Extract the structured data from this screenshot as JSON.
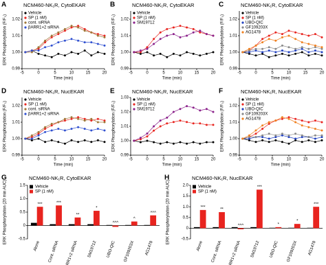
{
  "chart_data": [
    {
      "type": "line",
      "panel": "A",
      "title": "NCM460-NK₁R, CytoEKAR",
      "xlabel": "Time (min)",
      "ylabel": "ERK Phosphorylation (F/F₀)",
      "x": [
        -4,
        -2,
        0,
        2,
        4,
        6,
        8,
        10,
        12,
        14,
        16,
        18,
        20
      ],
      "xlim": [
        -5,
        20
      ],
      "xticks": [
        -5,
        0,
        5,
        10,
        15,
        20
      ],
      "ylim": [
        0.99,
        1.025
      ],
      "yticks": [
        0.99,
        {
          "value": 1,
          "label": "1.00"
        },
        1.01,
        1.02
      ],
      "series": [
        {
          "name": "Vehicle",
          "color": "#000000",
          "values": [
            1.0,
            1.001,
            0.999,
            0.998,
            0.997,
            0.999,
            0.998,
            1.0,
            0.999,
            1.001,
            0.998,
            1.0,
            0.999
          ]
        },
        {
          "name": "SP (1 nM)",
          "color": "#e8241f",
          "values": [
            1.0,
            1.001,
            1.002,
            1.006,
            1.009,
            1.011,
            1.013,
            1.015,
            1.016,
            1.014,
            1.012,
            1.011,
            1.01
          ]
        },
        {
          "name": "cont. siRNA",
          "color": "#a07838",
          "values": [
            1.0,
            1.0,
            1.003,
            1.007,
            1.01,
            1.012,
            1.014,
            1.016,
            1.015,
            1.013,
            1.012,
            1.01,
            1.009
          ]
        },
        {
          "name": "βARR1+2 siRNA",
          "color": "#3050d0",
          "values": [
            1.0,
            1.001,
            1.001,
            1.003,
            1.004,
            1.006,
            1.007,
            1.008,
            1.007,
            1.006,
            1.006,
            1.005,
            1.004
          ]
        }
      ]
    },
    {
      "type": "line",
      "panel": "B",
      "title": "NCM460-NK₁R, CytoEKAR",
      "xlabel": "Time (min)",
      "ylabel": "ERK Phosphorylation (F/F₀)",
      "x": [
        -4,
        -2,
        0,
        2,
        4,
        6,
        8,
        10,
        12,
        14,
        16,
        18,
        20
      ],
      "xlim": [
        -5,
        20
      ],
      "xticks": [
        -5,
        0,
        5,
        10,
        15,
        20
      ],
      "ylim": [
        0.99,
        1.025
      ],
      "yticks": [
        0.99,
        {
          "value": 1,
          "label": "1.00"
        },
        1.01,
        1.02
      ],
      "series": [
        {
          "name": "Vehicle",
          "color": "#000000",
          "values": [
            1.0,
            0.999,
            1.0,
            0.998,
            0.999,
            0.997,
            0.999,
            0.998,
            1.0,
            0.999,
            0.998,
            0.999,
            1.0
          ]
        },
        {
          "name": "SP (1 nM)",
          "color": "#e8241f",
          "values": [
            1.0,
            1.0,
            1.003,
            1.008,
            1.012,
            1.014,
            1.015,
            1.016,
            1.015,
            1.014,
            1.012,
            1.011,
            1.01
          ]
        },
        {
          "name": "SM19712",
          "color": "#8a1f8a",
          "values": [
            1.0,
            1.001,
            1.002,
            1.005,
            1.008,
            1.01,
            1.011,
            1.009,
            1.01,
            1.012,
            1.013,
            1.011,
            1.01
          ]
        }
      ]
    },
    {
      "type": "line",
      "panel": "C",
      "title": "NCM460-NK₁R, CytoEKAR",
      "xlabel": "Time (min)",
      "ylabel": "ERK Phosphorylation (F/F₀)",
      "x": [
        -4,
        -2,
        0,
        2,
        4,
        6,
        8,
        10,
        12,
        14,
        16,
        18,
        20
      ],
      "xlim": [
        -5,
        20
      ],
      "xticks": [
        -5,
        0,
        5,
        10,
        15,
        20
      ],
      "ylim": [
        0.99,
        1.025
      ],
      "yticks": [
        0.99,
        {
          "value": 1,
          "label": "1.00"
        },
        1.01,
        1.02
      ],
      "series": [
        {
          "name": "Vehicle",
          "color": "#000000",
          "values": [
            1.0,
            0.999,
            0.998,
            0.999,
            0.997,
            0.998,
            0.999,
            0.998,
            0.999,
            1.0,
            0.998,
            0.999,
            0.998
          ]
        },
        {
          "name": "SP (1 nM)",
          "color": "#e8241f",
          "values": [
            1.0,
            1.001,
            1.004,
            1.008,
            1.01,
            1.012,
            1.011,
            1.013,
            1.012,
            1.011,
            1.01,
            1.011,
            1.009
          ]
        },
        {
          "name": "UBO-QIC",
          "color": "#2040c0",
          "values": [
            1.0,
            1.0,
            1.001,
            1.0,
            1.001,
            1.0,
            1.001,
            1.0,
            1.001,
            1.002,
            1.0,
            1.001,
            1.0
          ]
        },
        {
          "name": "GF109203X",
          "color": "#888888",
          "values": [
            1.0,
            1.001,
            1.002,
            1.002,
            1.003,
            1.002,
            1.004,
            1.003,
            1.002,
            1.003,
            1.002,
            1.003,
            1.002
          ]
        },
        {
          "name": "AG1478",
          "color": "#f08020",
          "values": [
            1.0,
            1.002,
            1.004,
            1.006,
            1.008,
            1.007,
            1.009,
            1.01,
            1.008,
            1.006,
            1.005,
            1.004,
            1.003
          ]
        }
      ]
    },
    {
      "type": "line",
      "panel": "D",
      "title": "NCM460-NK₁R, NucEKAR",
      "xlabel": "Time (min)",
      "ylabel": "ERK Phosphorylation (F/F₀)",
      "x": [
        -4,
        -2,
        0,
        2,
        4,
        6,
        8,
        10,
        12,
        14,
        16,
        18,
        20
      ],
      "xlim": [
        -5,
        20
      ],
      "xticks": [
        -5,
        0,
        5,
        10,
        15,
        20
      ],
      "ylim": [
        0.99,
        1.025
      ],
      "yticks": [
        0.99,
        {
          "value": 1,
          "label": "1.00"
        },
        1.01,
        1.02
      ],
      "series": [
        {
          "name": "Vehicle",
          "color": "#000000",
          "values": [
            1.0,
            0.999,
            1.0,
            0.998,
            0.999,
            0.998,
            0.997,
            0.999,
            0.998,
            0.999,
            0.998,
            0.999,
            0.998
          ]
        },
        {
          "name": "SP (1 nM)",
          "color": "#e8241f",
          "values": [
            1.0,
            1.001,
            1.003,
            1.006,
            1.008,
            1.01,
            1.011,
            1.012,
            1.013,
            1.012,
            1.011,
            1.012,
            1.011
          ]
        },
        {
          "name": "cont. siRNA",
          "color": "#a07838",
          "values": [
            1.0,
            1.002,
            1.004,
            1.007,
            1.009,
            1.01,
            1.012,
            1.013,
            1.012,
            1.011,
            1.012,
            1.01,
            1.01
          ]
        },
        {
          "name": "βARR1+2 siRNA",
          "color": "#3050d0",
          "values": [
            1.0,
            1.0,
            1.002,
            1.004,
            1.005,
            1.006,
            1.005,
            1.006,
            1.007,
            1.006,
            1.005,
            1.006,
            1.005
          ]
        }
      ]
    },
    {
      "type": "line",
      "panel": "E",
      "title": "NCM460-NK₁R, NucEKAR",
      "xlabel": "Time (min)",
      "ylabel": "ERK Phosphorylation (F/F₀)",
      "x": [
        -4,
        -2,
        0,
        2,
        4,
        6,
        8,
        10,
        12,
        14,
        16,
        18,
        20
      ],
      "xlim": [
        -5,
        20
      ],
      "xticks": [
        -5,
        0,
        5,
        10,
        15,
        20
      ],
      "ylim": [
        0.99,
        1.03
      ],
      "yticks": [
        0.99,
        {
          "value": 1,
          "label": "1.00"
        },
        1.01,
        1.02,
        1.03
      ],
      "series": [
        {
          "name": "Vehicle",
          "color": "#000000",
          "values": [
            1.0,
            0.999,
            1.0,
            0.999,
            0.998,
            0.999,
            0.998,
            0.999,
            0.998,
            0.999,
            0.998,
            0.999,
            0.999
          ]
        },
        {
          "name": "SP (1 nM)",
          "color": "#e8241f",
          "values": [
            1.0,
            1.001,
            1.003,
            1.007,
            1.01,
            1.012,
            1.013,
            1.014,
            1.013,
            1.012,
            1.012,
            1.011,
            1.011
          ]
        },
        {
          "name": "SM19712",
          "color": "#8a1f8a",
          "values": [
            1.0,
            1.002,
            1.005,
            1.01,
            1.014,
            1.016,
            1.02,
            1.022,
            1.024,
            1.023,
            1.021,
            1.022,
            1.02
          ]
        }
      ]
    },
    {
      "type": "line",
      "panel": "F",
      "title": "NCM460-NK₁R, NucEKAR",
      "xlabel": "Time (min)",
      "ylabel": "ERK Phosphorylation (F/F₀)",
      "x": [
        -4,
        -2,
        0,
        2,
        4,
        6,
        8,
        10,
        12,
        14,
        16,
        18,
        20
      ],
      "xlim": [
        -5,
        20
      ],
      "xticks": [
        -5,
        0,
        5,
        10,
        15,
        20
      ],
      "ylim": [
        0.99,
        1.025
      ],
      "yticks": [
        0.99,
        {
          "value": 1,
          "label": "1.00"
        },
        1.01,
        1.02
      ],
      "series": [
        {
          "name": "Vehicle",
          "color": "#000000",
          "values": [
            1.0,
            0.999,
            0.998,
            0.999,
            0.998,
            0.999,
            0.998,
            0.997,
            0.999,
            0.998,
            0.999,
            0.998,
            0.999
          ]
        },
        {
          "name": "SP (1 nM)",
          "color": "#e8241f",
          "values": [
            1.0,
            1.001,
            1.003,
            1.006,
            1.009,
            1.011,
            1.012,
            1.013,
            1.012,
            1.011,
            1.01,
            1.011,
            1.01
          ]
        },
        {
          "name": "UBO-QIC",
          "color": "#2040c0",
          "values": [
            1.0,
            1.0,
            1.001,
            1.001,
            1.0,
            1.001,
            1.002,
            1.001,
            1.0,
            1.001,
            1.001,
            1.0,
            1.001
          ]
        },
        {
          "name": "GF109203X",
          "color": "#888888",
          "values": [
            1.0,
            1.001,
            1.001,
            1.002,
            1.003,
            1.002,
            1.003,
            1.002,
            1.003,
            1.002,
            1.001,
            1.002,
            1.002
          ]
        },
        {
          "name": "AG1478",
          "color": "#f08020",
          "values": [
            1.0,
            1.002,
            1.005,
            1.008,
            1.01,
            1.011,
            1.013,
            1.012,
            1.01,
            1.008,
            1.007,
            1.006,
            1.005
          ]
        }
      ]
    },
    {
      "type": "bar",
      "panel": "G",
      "title": "NCM460-NK₁R, CytoEKAR",
      "ylabel": "ERK Phosphorylation (20 min AUC)",
      "categories": [
        "Alone",
        "Cont. siRNA",
        "βARR1+2 siRNA",
        "SM19712",
        "UBO-QIC",
        "GF109203X",
        "AG1478"
      ],
      "ylim": [
        -0.5,
        1.5
      ],
      "yticks": [
        -0.5,
        0,
        0.5,
        {
          "value": 1,
          "label": "1.0"
        },
        1.5
      ],
      "series": [
        {
          "name": "Vehicle",
          "color": "#000000",
          "values": [
            0.1,
            0.05,
            0.05,
            0.05,
            0.02,
            0.02,
            0.02
          ]
        },
        {
          "name": "SP (1 nM)",
          "color": "#e8241f",
          "values": [
            0.7,
            0.75,
            0.3,
            0.55,
            -0.05,
            0.15,
            0.38
          ]
        }
      ],
      "significance": [
        "***",
        "***",
        "**",
        "*",
        "^^^",
        "^",
        "^^^"
      ]
    },
    {
      "type": "bar",
      "panel": "H",
      "title": "NCM460-NK₁R, NucEKAR",
      "ylabel": "ERK Phosphorylation (20 min AUC)",
      "categories": [
        "Alone",
        "Cont. siRNA",
        "βARR1+2 siRNA",
        "SM19712",
        "UBO-QIC",
        "GF109203X",
        "AG1478"
      ],
      "ylim": [
        -0.5,
        2
      ],
      "yticks": [
        -0.5,
        0,
        0.5,
        {
          "value": 1,
          "label": "1.0"
        },
        1.5,
        {
          "value": 2,
          "label": "2.0"
        }
      ],
      "series": [
        {
          "name": "Vehicle",
          "color": "#000000",
          "values": [
            0.05,
            0.05,
            0.05,
            0.05,
            0.02,
            0.02,
            0.02
          ]
        },
        {
          "name": "SP (1 nM)",
          "color": "#e8241f",
          "values": [
            0.85,
            0.75,
            -0.05,
            1.8,
            0.05,
            0.2,
            1.0
          ]
        }
      ],
      "significance": [
        "***",
        "**",
        "^^^",
        "***",
        "*",
        "*",
        "***"
      ]
    }
  ]
}
